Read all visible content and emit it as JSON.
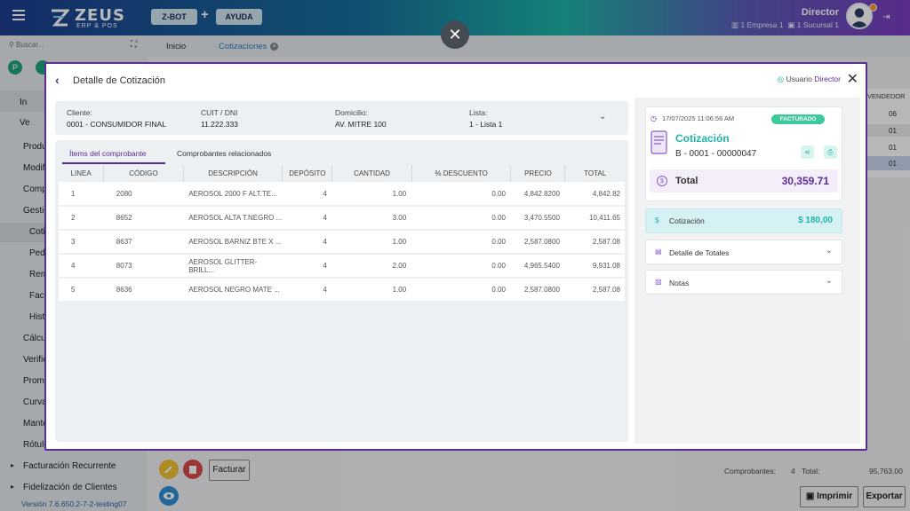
{
  "topbar": {
    "logo_name": "ZEUS",
    "logo_sub": "ERP & POS",
    "zbot_label": "Z-BOT",
    "plus": "+",
    "ayuda_label": "AYUDA",
    "user_name": "Director",
    "empresa": "1 Empresa 1",
    "sucursal": "1 Sucursal 1"
  },
  "sidebar": {
    "search_placeholder": "Buscar...",
    "items": [
      {
        "label": "In"
      },
      {
        "label": "Ve"
      },
      {
        "label": "Produ"
      },
      {
        "label": "Modif"
      },
      {
        "label": "Comp"
      },
      {
        "label": "Gestió"
      },
      {
        "label": "Coti"
      },
      {
        "label": "Ped"
      },
      {
        "label": "Rem"
      },
      {
        "label": "Fact"
      },
      {
        "label": "Histo"
      },
      {
        "label": "Cálcu"
      },
      {
        "label": "Verific"
      },
      {
        "label": "Prome"
      },
      {
        "label": "Curva"
      },
      {
        "label": "Mante"
      },
      {
        "label": "Rótulo"
      },
      {
        "label": "Facturación Recurrente"
      },
      {
        "label": "Fidelización de Clientes"
      }
    ],
    "version": "Versión 7.6.650.2-7-2-testing07"
  },
  "tabs": [
    {
      "label": "Inicio"
    },
    {
      "label": "Cotizaciones"
    }
  ],
  "background_table": {
    "header": "VENDEDOR",
    "rows": [
      "06",
      "01",
      "01",
      "01"
    ]
  },
  "modal": {
    "title": "Detalle de Cotización",
    "user_label": "Usuario",
    "user_value": "Director",
    "cliente_label": "Cliente:",
    "cliente_value": "0001 - CONSUMIDOR FINAL",
    "cuit_label": "CUIT / DNI",
    "cuit_value": "11.222.333",
    "domicilio_label": "Domicilio:",
    "domicilio_value": "AV. MITRE 100",
    "lista_label": "Lista:",
    "lista_value": "1 - Lista 1",
    "tab_items": "Ítems del comprobante",
    "tab_related": "Comprobantes relacionados",
    "columns": [
      "LINEA",
      "CÓDIGO",
      "DESCRIPCIÓN",
      "DEPÓSITO",
      "CANTIDAD",
      "% DESCUENTO",
      "PRECIO",
      "TOTAL"
    ],
    "rows": [
      [
        "1",
        "2080",
        "AEROSOL 2000 F ALT.TE...",
        "4",
        "1.00",
        "0.00",
        "4,842.8200",
        "4,842.82"
      ],
      [
        "2",
        "8652",
        "AEROSOL ALTA T.NEGRO ...",
        "4",
        "3.00",
        "0.00",
        "3,470.5500",
        "10,411.65"
      ],
      [
        "3",
        "8637",
        "AEROSOL BARNIZ BTE X ...",
        "4",
        "1.00",
        "0.00",
        "2,587.0800",
        "2,587.08"
      ],
      [
        "4",
        "8073",
        "AEROSOL GLITTER-BRILL...",
        "4",
        "2.00",
        "0.00",
        "4,965.5400",
        "9,931.08"
      ],
      [
        "5",
        "8636",
        "AEROSOL NEGRO MATE ...",
        "4",
        "1.00",
        "0.00",
        "2,587.0800",
        "2,587.08"
      ]
    ],
    "summary": {
      "datetime": "17/07/2025 11:06:56 AM",
      "status": "FACTURADO",
      "doc_type": "Cotización",
      "doc_number": "B - 0001 - 00000047",
      "total_label": "Total",
      "total_value": "30,359.71"
    },
    "cotizacion_label": "Cotización",
    "cotizacion_value": "$ 180,00",
    "detalle_label": "Detalle de Totales",
    "notas_label": "Notas"
  },
  "bottom": {
    "facturar_label": "Facturar",
    "comprobantes_label": "Comprobantes:",
    "comprobantes_value": "4",
    "total_label": "Total:",
    "total_value": "95,763.00",
    "imprimir_label": "Imprimir",
    "exportar_label": "Exportar"
  },
  "colors": {
    "accent": "#5a2d92",
    "teal": "#1fb4a8",
    "green_badge": "#3ec99c"
  }
}
